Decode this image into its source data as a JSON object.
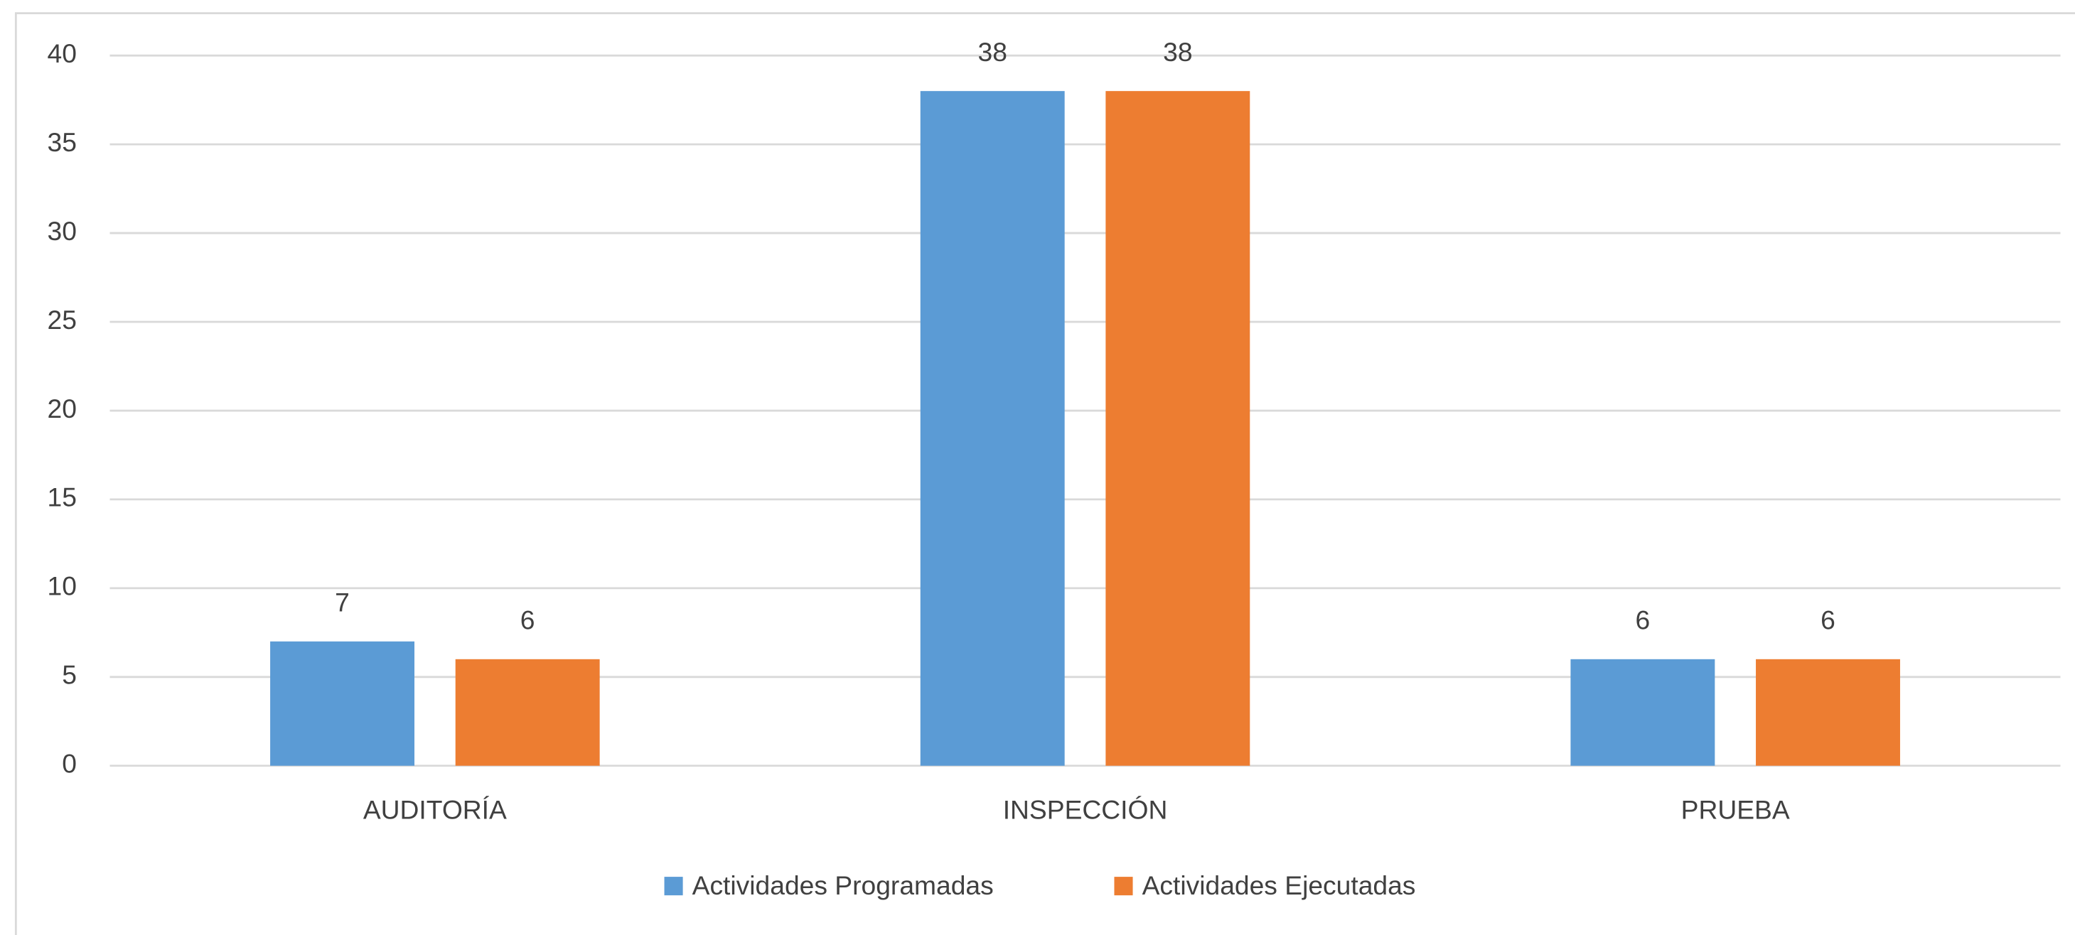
{
  "chart_data": {
    "type": "bar",
    "categories": [
      "AUDITORÍA",
      "INSPECCIÓN",
      "PRUEBA"
    ],
    "series": [
      {
        "name": "Actividades Programadas",
        "color": "#5b9bd5",
        "values": [
          7,
          38,
          6
        ]
      },
      {
        "name": "Actividades Ejecutadas",
        "color": "#ed7d31",
        "values": [
          6,
          38,
          6
        ]
      }
    ],
    "ylim": [
      0,
      40
    ],
    "yticks": [
      0,
      5,
      10,
      15,
      20,
      25,
      30,
      35,
      40
    ],
    "grid": true,
    "legend": "bottom"
  }
}
